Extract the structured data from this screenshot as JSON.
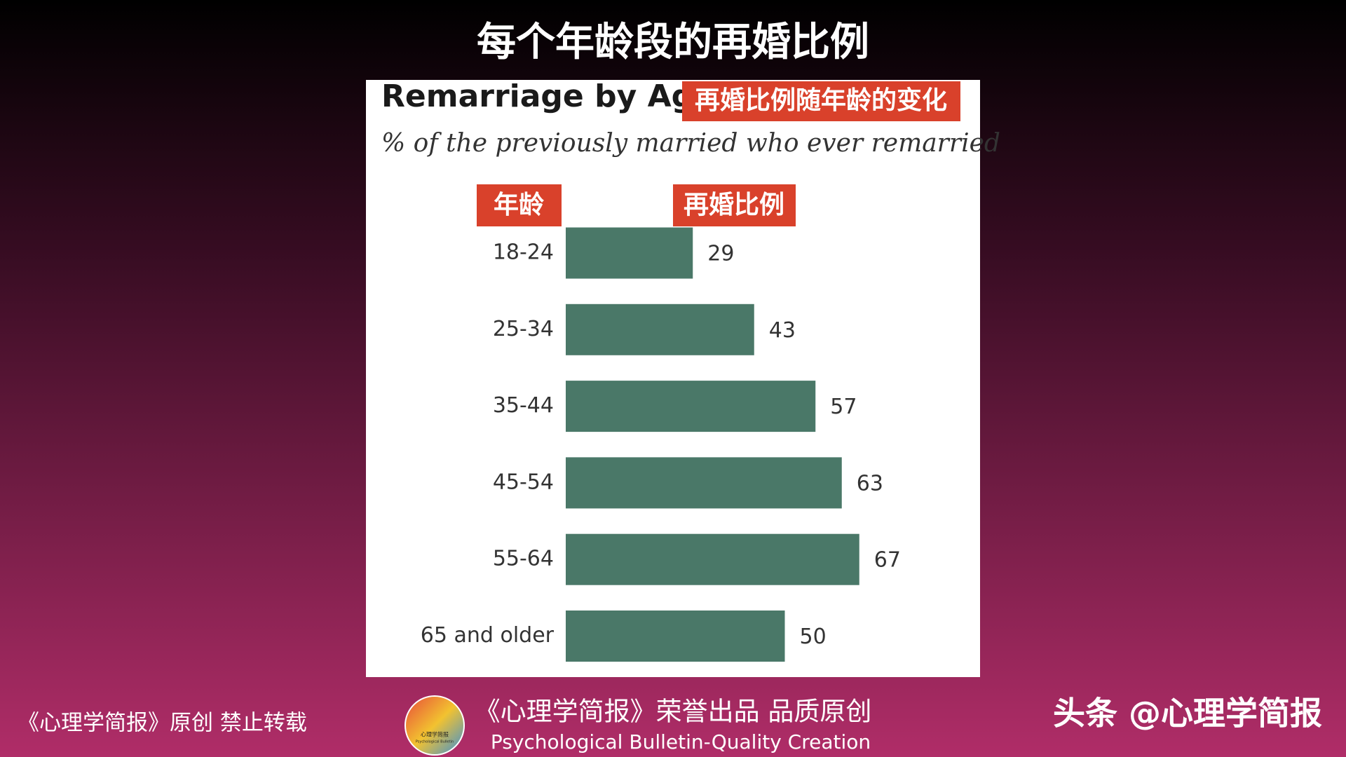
{
  "slide_title": "每个年龄段的再婚比例",
  "annotations": {
    "title_tag": "再婚比例随年龄的变化",
    "age_tag": "年龄",
    "rate_tag": "再婚比例"
  },
  "chart_data": {
    "type": "bar",
    "orientation": "horizontal",
    "title": "Remarriage by Age",
    "subtitle": "% of the previously married who ever remarried",
    "categories": [
      "18-24",
      "25-34",
      "35-44",
      "45-54",
      "55-64",
      "65 and older"
    ],
    "values": [
      29,
      43,
      57,
      63,
      67,
      50
    ],
    "color": "#4a7868"
  },
  "footer": {
    "left": "《心理学简报》原创 禁止转载",
    "center_title": "《心理学简报》荣誉出品 品质原创",
    "center_subtitle": "Psychological Bulletin-Quality Creation",
    "right": "头条 @心理学简报",
    "logo_title": "心理学简报",
    "logo_subtitle": "Psychological Bulletin"
  }
}
